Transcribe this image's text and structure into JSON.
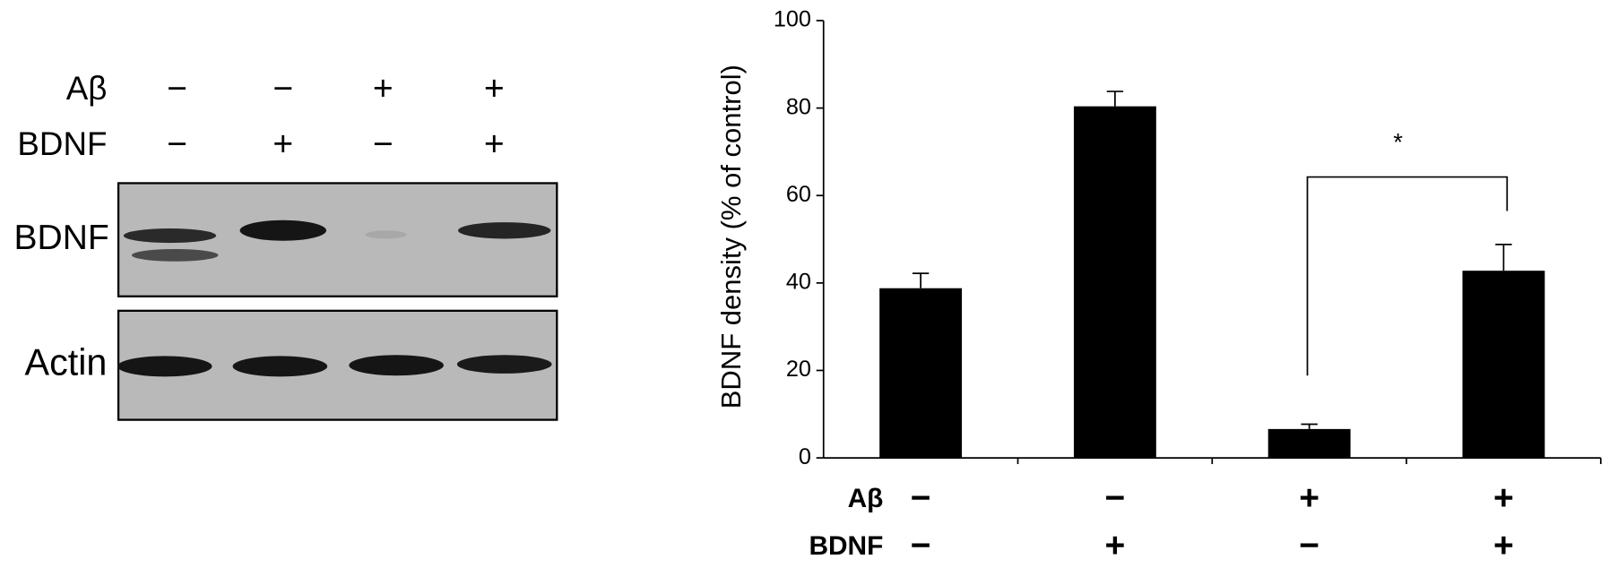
{
  "blot": {
    "treatments": [
      {
        "name": "Aβ",
        "signs": [
          "−",
          "−",
          "+",
          "+"
        ]
      },
      {
        "name": "BDNF",
        "signs": [
          "−",
          "+",
          "−",
          "+"
        ]
      }
    ],
    "panels": [
      "BDNF",
      "Actin"
    ]
  },
  "chart_data": {
    "type": "bar",
    "ylabel": "BDNF density (% of control)",
    "values": [
      38.8,
      80.4,
      6.6,
      42.8
    ],
    "errors": [
      3.4,
      3.4,
      1.1,
      6.0
    ],
    "color": "#000000",
    "ylim": [
      0,
      100
    ],
    "yticks": [
      0,
      20,
      40,
      60,
      80,
      100
    ],
    "treatments": [
      {
        "name": "Aβ",
        "signs": [
          "−",
          "−",
          "+",
          "+"
        ]
      },
      {
        "name": "BDNF",
        "signs": [
          "−",
          "+",
          "−",
          "+"
        ]
      }
    ],
    "annotation": "*"
  }
}
